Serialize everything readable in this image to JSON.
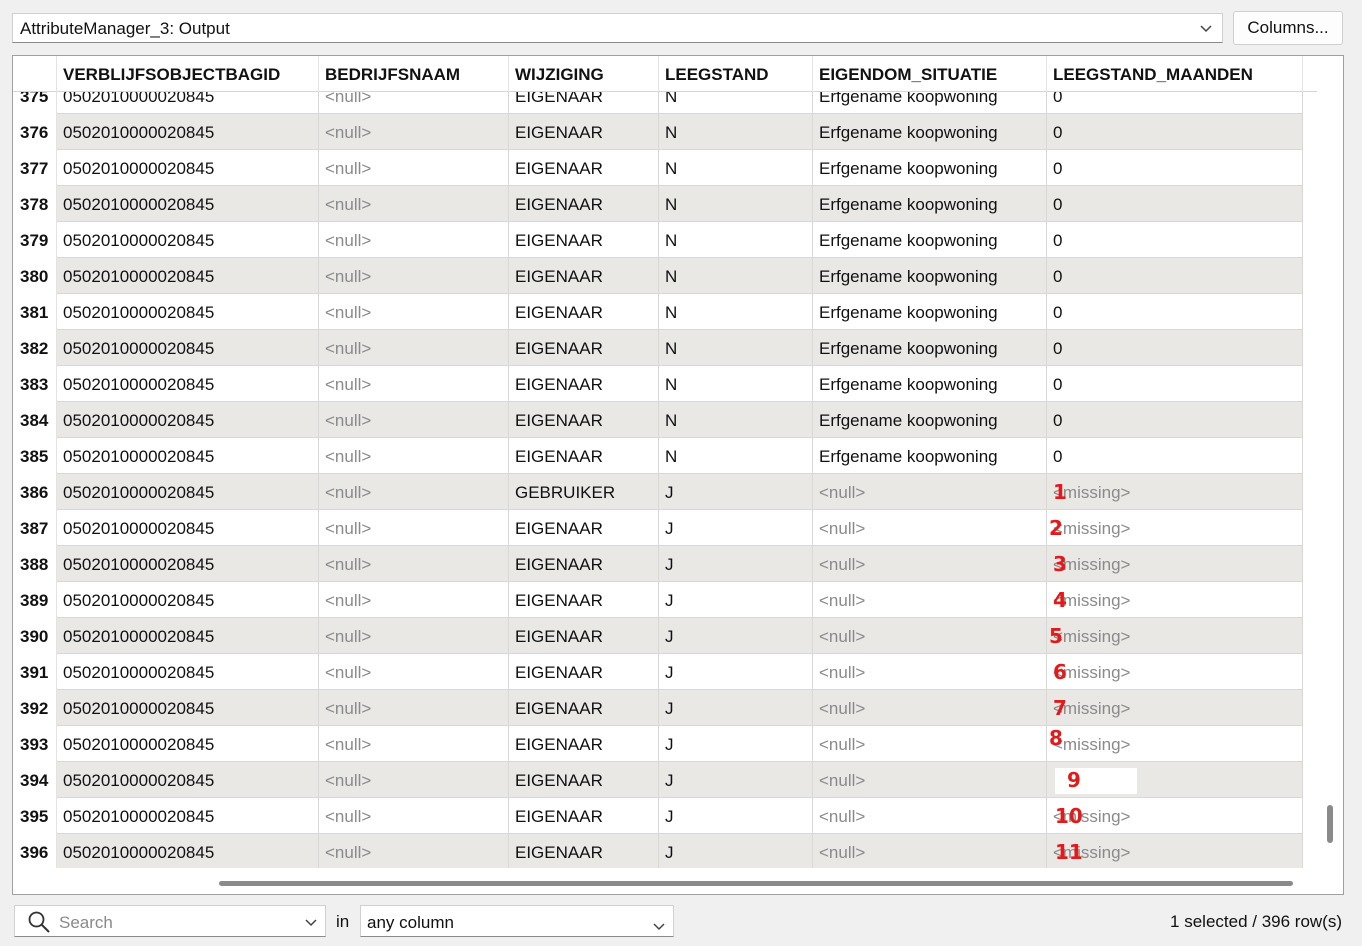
{
  "header": {
    "output_label": "AttributeManager_3: Output",
    "columns_button": "Columns..."
  },
  "table": {
    "columns": [
      "VERBLIJFSOBJECTBAGID",
      "BEDRIJFSNAAM",
      "WIJZIGING",
      "LEEGSTAND",
      "EIGENDOM_SITUATIE",
      "LEEGSTAND_MAANDEN"
    ],
    "rows": [
      {
        "n": "375",
        "id": "0502010000020845",
        "bedrijf": "<null>",
        "wijz": "EIGENAAR",
        "leeg": "N",
        "eig": "Erfgename koopwoning",
        "maanden": "0",
        "marker": ""
      },
      {
        "n": "376",
        "id": "0502010000020845",
        "bedrijf": "<null>",
        "wijz": "EIGENAAR",
        "leeg": "N",
        "eig": "Erfgename koopwoning",
        "maanden": "0",
        "marker": ""
      },
      {
        "n": "377",
        "id": "0502010000020845",
        "bedrijf": "<null>",
        "wijz": "EIGENAAR",
        "leeg": "N",
        "eig": "Erfgename koopwoning",
        "maanden": "0",
        "marker": ""
      },
      {
        "n": "378",
        "id": "0502010000020845",
        "bedrijf": "<null>",
        "wijz": "EIGENAAR",
        "leeg": "N",
        "eig": "Erfgename koopwoning",
        "maanden": "0",
        "marker": ""
      },
      {
        "n": "379",
        "id": "0502010000020845",
        "bedrijf": "<null>",
        "wijz": "EIGENAAR",
        "leeg": "N",
        "eig": "Erfgename koopwoning",
        "maanden": "0",
        "marker": ""
      },
      {
        "n": "380",
        "id": "0502010000020845",
        "bedrijf": "<null>",
        "wijz": "EIGENAAR",
        "leeg": "N",
        "eig": "Erfgename koopwoning",
        "maanden": "0",
        "marker": ""
      },
      {
        "n": "381",
        "id": "0502010000020845",
        "bedrijf": "<null>",
        "wijz": "EIGENAAR",
        "leeg": "N",
        "eig": "Erfgename koopwoning",
        "maanden": "0",
        "marker": ""
      },
      {
        "n": "382",
        "id": "0502010000020845",
        "bedrijf": "<null>",
        "wijz": "EIGENAAR",
        "leeg": "N",
        "eig": "Erfgename koopwoning",
        "maanden": "0",
        "marker": ""
      },
      {
        "n": "383",
        "id": "0502010000020845",
        "bedrijf": "<null>",
        "wijz": "EIGENAAR",
        "leeg": "N",
        "eig": "Erfgename koopwoning",
        "maanden": "0",
        "marker": ""
      },
      {
        "n": "384",
        "id": "0502010000020845",
        "bedrijf": "<null>",
        "wijz": "EIGENAAR",
        "leeg": "N",
        "eig": "Erfgename koopwoning",
        "maanden": "0",
        "marker": ""
      },
      {
        "n": "385",
        "id": "0502010000020845",
        "bedrijf": "<null>",
        "wijz": "EIGENAAR",
        "leeg": "N",
        "eig": "Erfgename koopwoning",
        "maanden": "0",
        "marker": ""
      },
      {
        "n": "386",
        "id": "0502010000020845",
        "bedrijf": "<null>",
        "wijz": "GEBRUIKER",
        "leeg": "J",
        "eig": "<null>",
        "maanden": "<missing>",
        "marker": "1"
      },
      {
        "n": "387",
        "id": "0502010000020845",
        "bedrijf": "<null>",
        "wijz": "EIGENAAR",
        "leeg": "J",
        "eig": "<null>",
        "maanden": "<missing>",
        "marker": "2"
      },
      {
        "n": "388",
        "id": "0502010000020845",
        "bedrijf": "<null>",
        "wijz": "EIGENAAR",
        "leeg": "J",
        "eig": "<null>",
        "maanden": "<missing>",
        "marker": "3"
      },
      {
        "n": "389",
        "id": "0502010000020845",
        "bedrijf": "<null>",
        "wijz": "EIGENAAR",
        "leeg": "J",
        "eig": "<null>",
        "maanden": "<missing>",
        "marker": "4"
      },
      {
        "n": "390",
        "id": "0502010000020845",
        "bedrijf": "<null>",
        "wijz": "EIGENAAR",
        "leeg": "J",
        "eig": "<null>",
        "maanden": "<missing>",
        "marker": "5"
      },
      {
        "n": "391",
        "id": "0502010000020845",
        "bedrijf": "<null>",
        "wijz": "EIGENAAR",
        "leeg": "J",
        "eig": "<null>",
        "maanden": "<missing>",
        "marker": "6"
      },
      {
        "n": "392",
        "id": "0502010000020845",
        "bedrijf": "<null>",
        "wijz": "EIGENAAR",
        "leeg": "J",
        "eig": "<null>",
        "maanden": "<missing>",
        "marker": "7"
      },
      {
        "n": "393",
        "id": "0502010000020845",
        "bedrijf": "<null>",
        "wijz": "EIGENAAR",
        "leeg": "J",
        "eig": "<null>",
        "maanden": "<missing>",
        "marker": "8"
      },
      {
        "n": "394",
        "id": "0502010000020845",
        "bedrijf": "<null>",
        "wijz": "EIGENAAR",
        "leeg": "J",
        "eig": "<null>",
        "maanden": "",
        "marker": "9"
      },
      {
        "n": "395",
        "id": "0502010000020845",
        "bedrijf": "<null>",
        "wijz": "EIGENAAR",
        "leeg": "J",
        "eig": "<null>",
        "maanden": "<missing>",
        "marker": "10"
      },
      {
        "n": "396",
        "id": "0502010000020845",
        "bedrijf": "<null>",
        "wijz": "EIGENAAR",
        "leeg": "J",
        "eig": "<null>",
        "maanden": "<missing>",
        "marker": "11"
      }
    ]
  },
  "footer": {
    "search_placeholder": "Search",
    "in_label": "in",
    "column_filter": "any column",
    "status": "1 selected / 396 row(s)"
  },
  "icons": {
    "output_dropdown": "chevron-down-icon",
    "search": "search-icon",
    "search_dropdown": "chevron-down-icon",
    "column_dropdown": "chevron-down-icon"
  },
  "colors": {
    "alt_row": "#e9e8e5",
    "null_text": "#8a8a8a",
    "marker": "#e01b1b"
  }
}
